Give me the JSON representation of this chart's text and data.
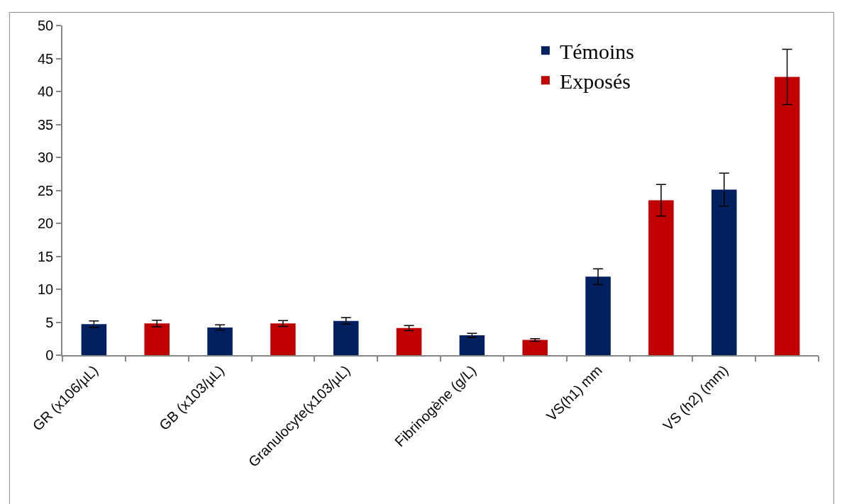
{
  "chart_data": {
    "type": "bar",
    "categories": [
      "GR (x106/µL)",
      null,
      "GB (x103/µL)",
      null,
      "Granulocyte(x103/µL)",
      null,
      "Fibrinogène (g/L)",
      null,
      "VS(h1) mm",
      null,
      "VS (h2) (mm)",
      null
    ],
    "series": [
      {
        "name": "Témoins",
        "color": "#002060",
        "values": [
          4.7,
          null,
          4.2,
          null,
          5.2,
          null,
          3.0,
          null,
          11.9,
          null,
          25.1,
          null
        ],
        "errors": [
          0.5,
          null,
          0.4,
          null,
          0.5,
          null,
          0.3,
          null,
          1.2,
          null,
          2.5,
          null
        ]
      },
      {
        "name": "Exposés",
        "color": "#c00000",
        "values": [
          null,
          4.8,
          null,
          4.8,
          null,
          4.1,
          null,
          2.3,
          null,
          23.5,
          null,
          42.2
        ],
        "errors": [
          null,
          0.5,
          null,
          0.45,
          null,
          0.4,
          null,
          0.2,
          null,
          2.4,
          null,
          4.2
        ]
      }
    ],
    "ylim": [
      0,
      50
    ],
    "yticks": [
      0,
      5,
      10,
      15,
      20,
      25,
      30,
      35,
      40,
      45,
      50
    ],
    "grid": false,
    "legend": "top right"
  }
}
